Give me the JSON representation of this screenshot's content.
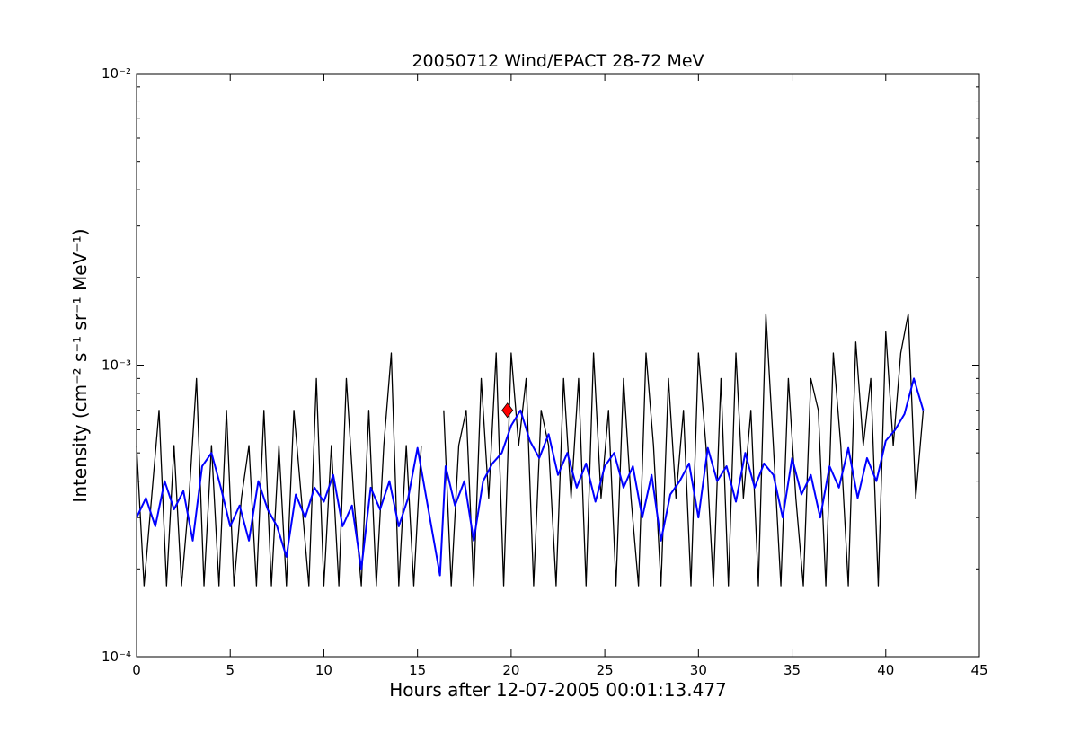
{
  "chart_data": {
    "type": "line",
    "title": "20050712 Wind/EPACT 28-72 MeV",
    "xlabel": "Hours after 12-07-2005 00:01:13.477",
    "ylabel": "Intensity (cm⁻² s⁻¹ sr⁻¹ MeV⁻¹)",
    "xlim": [
      0,
      45
    ],
    "xticks": [
      0,
      5,
      10,
      15,
      20,
      25,
      30,
      35,
      40,
      45
    ],
    "ylim": [
      0.0001,
      0.01
    ],
    "yticks": [
      {
        "value": 0.0001,
        "label": "10⁻⁴"
      },
      {
        "value": 0.001,
        "label": "10⁻³"
      },
      {
        "value": 0.01,
        "label": "10⁻²"
      }
    ],
    "yminorticks": [
      0.0002,
      0.0003,
      0.0004,
      0.0005,
      0.0006,
      0.0007,
      0.0008,
      0.0009,
      0.002,
      0.003,
      0.004,
      0.005,
      0.006,
      0.007,
      0.008,
      0.009
    ],
    "yscale": "log",
    "grid": false,
    "series": [
      {
        "color": "#000000",
        "width": 1.3,
        "x": [
          0,
          0.4,
          0.8,
          1.2,
          1.6,
          2,
          2.4,
          2.8,
          3.2,
          3.6,
          4,
          4.4,
          4.8,
          5.2,
          5.6,
          6,
          6.4,
          6.8,
          7.2,
          7.6,
          8,
          8.4,
          8.8,
          9.2,
          9.6,
          10,
          10.4,
          10.8,
          11.2,
          11.6,
          12,
          12.4,
          12.8,
          13.2,
          13.6,
          14,
          14.4,
          14.8,
          15.2,
          15.8,
          16.4,
          16.8,
          17.2,
          17.6,
          18,
          18.4,
          18.8,
          19.2,
          19.6,
          20,
          20.4,
          20.8,
          21.2,
          21.6,
          22,
          22.4,
          22.8,
          23.2,
          23.6,
          24,
          24.4,
          24.8,
          25.2,
          25.6,
          26,
          26.4,
          26.8,
          27.2,
          27.6,
          28,
          28.4,
          28.8,
          29.2,
          29.6,
          30,
          30.4,
          30.8,
          31.2,
          31.6,
          32,
          32.4,
          32.8,
          33.2,
          33.6,
          34,
          34.4,
          34.8,
          35.2,
          35.6,
          36,
          36.4,
          36.8,
          37.2,
          37.6,
          38,
          38.4,
          38.8,
          39.2,
          39.6,
          40,
          40.4,
          40.8,
          41.2,
          41.6,
          42
        ],
        "values": [
          0.00053,
          0.000175,
          0.00035,
          0.0007,
          0.000175,
          0.00053,
          0.000175,
          0.00035,
          0.0009,
          0.000175,
          0.00053,
          0.000175,
          0.0007,
          0.000175,
          0.00035,
          0.00053,
          0.000175,
          0.0007,
          0.000175,
          0.00053,
          0.000175,
          0.0007,
          0.00035,
          0.000175,
          0.0009,
          0.000175,
          0.00053,
          0.000175,
          0.0009,
          0.00035,
          0.000175,
          0.0007,
          0.000175,
          0.00053,
          0.0011,
          0.000175,
          0.00053,
          0.000175,
          0.00053,
          null,
          0.0007,
          0.000175,
          0.00053,
          0.0007,
          0.000175,
          0.0009,
          0.00035,
          0.0011,
          0.000175,
          0.0011,
          0.00053,
          0.0009,
          0.000175,
          0.0007,
          0.00053,
          0.000175,
          0.0009,
          0.00035,
          0.0009,
          0.000175,
          0.0011,
          0.00035,
          0.0007,
          0.000175,
          0.0009,
          0.00035,
          0.000175,
          0.0011,
          0.00053,
          0.000175,
          0.0009,
          0.00035,
          0.0007,
          0.000175,
          0.0011,
          0.00053,
          0.000175,
          0.0009,
          0.000175,
          0.0011,
          0.00035,
          0.0007,
          0.000175,
          0.0015,
          0.00053,
          0.000175,
          0.0009,
          0.00035,
          0.000175,
          0.0009,
          0.0007,
          0.000175,
          0.0011,
          0.00053,
          0.000175,
          0.0012,
          0.00053,
          0.0009,
          0.000175,
          0.0013,
          0.00053,
          0.0011,
          0.0015,
          0.00035,
          0.0007
        ]
      },
      {
        "color": "#0000ff",
        "width": 2,
        "x": [
          0,
          0.5,
          1,
          1.5,
          2,
          2.5,
          3,
          3.5,
          4,
          4.5,
          5,
          5.5,
          6,
          6.5,
          7,
          7.5,
          8,
          8.5,
          9,
          9.5,
          10,
          10.5,
          11,
          11.5,
          12,
          12.5,
          13,
          13.5,
          14,
          14.5,
          15,
          16.2,
          16.5,
          17,
          17.5,
          18,
          18.5,
          19,
          19.5,
          20,
          20.5,
          21,
          21.5,
          22,
          22.5,
          23,
          23.5,
          24,
          24.5,
          25,
          25.5,
          26,
          26.5,
          27,
          27.5,
          28,
          28.5,
          29,
          29.5,
          30,
          30.5,
          31,
          31.5,
          32,
          32.5,
          33,
          33.5,
          34,
          34.5,
          35,
          35.5,
          36,
          36.5,
          37,
          37.5,
          38,
          38.5,
          39,
          39.5,
          40,
          40.5,
          41,
          41.5,
          42
        ],
        "values": [
          0.0003,
          0.00035,
          0.00028,
          0.0004,
          0.00032,
          0.00037,
          0.00025,
          0.00045,
          0.0005,
          0.00038,
          0.00028,
          0.00033,
          0.00025,
          0.0004,
          0.00032,
          0.00028,
          0.00022,
          0.00036,
          0.0003,
          0.00038,
          0.00034,
          0.00042,
          0.00028,
          0.00033,
          0.0002,
          0.00038,
          0.00032,
          0.0004,
          0.00028,
          0.00035,
          0.00052,
          0.00019,
          0.00045,
          0.00033,
          0.0004,
          0.00025,
          0.0004,
          0.00046,
          0.0005,
          0.00062,
          0.0007,
          0.00055,
          0.00048,
          0.00058,
          0.00042,
          0.0005,
          0.00038,
          0.00046,
          0.00034,
          0.00045,
          0.0005,
          0.00038,
          0.00045,
          0.0003,
          0.00042,
          0.00025,
          0.00036,
          0.0004,
          0.00046,
          0.0003,
          0.00052,
          0.0004,
          0.00045,
          0.00034,
          0.0005,
          0.00038,
          0.00046,
          0.00042,
          0.0003,
          0.00048,
          0.00036,
          0.00042,
          0.0003,
          0.00045,
          0.00038,
          0.00052,
          0.00035,
          0.00048,
          0.0004,
          0.00055,
          0.0006,
          0.00068,
          0.0009,
          0.0007
        ]
      },
      {
        "color": "#ff0000",
        "marker": "diamond",
        "x": [
          19.8
        ],
        "values": [
          0.0007
        ]
      }
    ]
  }
}
